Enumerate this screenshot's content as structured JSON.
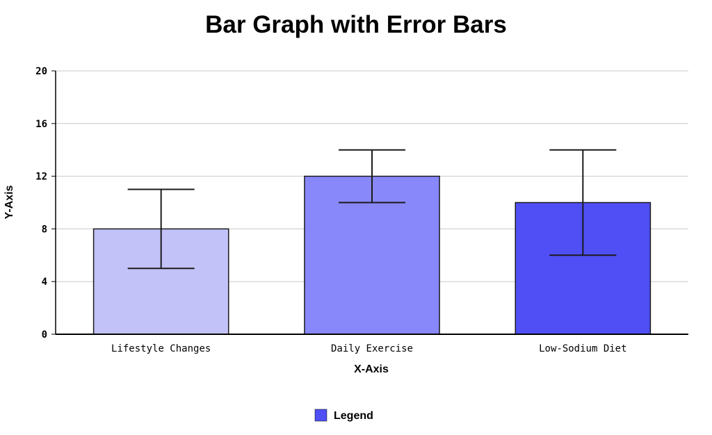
{
  "chart_data": {
    "type": "bar",
    "title": "Bar Graph with Error Bars",
    "xlabel": "X-Axis",
    "ylabel": "Y-Axis",
    "ylim": [
      0,
      20
    ],
    "yticks": [
      "0",
      "4",
      "8",
      "12",
      "16",
      "20"
    ],
    "grid": "horizontal",
    "categories": [
      "Lifestyle Changes",
      "Daily Exercise",
      "Low-Sodium Diet"
    ],
    "series": [
      {
        "name": "Legend",
        "values": [
          8,
          12,
          10
        ],
        "error_low": [
          5,
          10,
          6
        ],
        "error_high": [
          11,
          14,
          14
        ]
      }
    ],
    "bar_colors": [
      "#c2c2f8",
      "#8888fb",
      "#4f4ff5"
    ],
    "legend": {
      "label": "Legend",
      "color": "#4f4ff5",
      "placement": "bottom"
    }
  }
}
